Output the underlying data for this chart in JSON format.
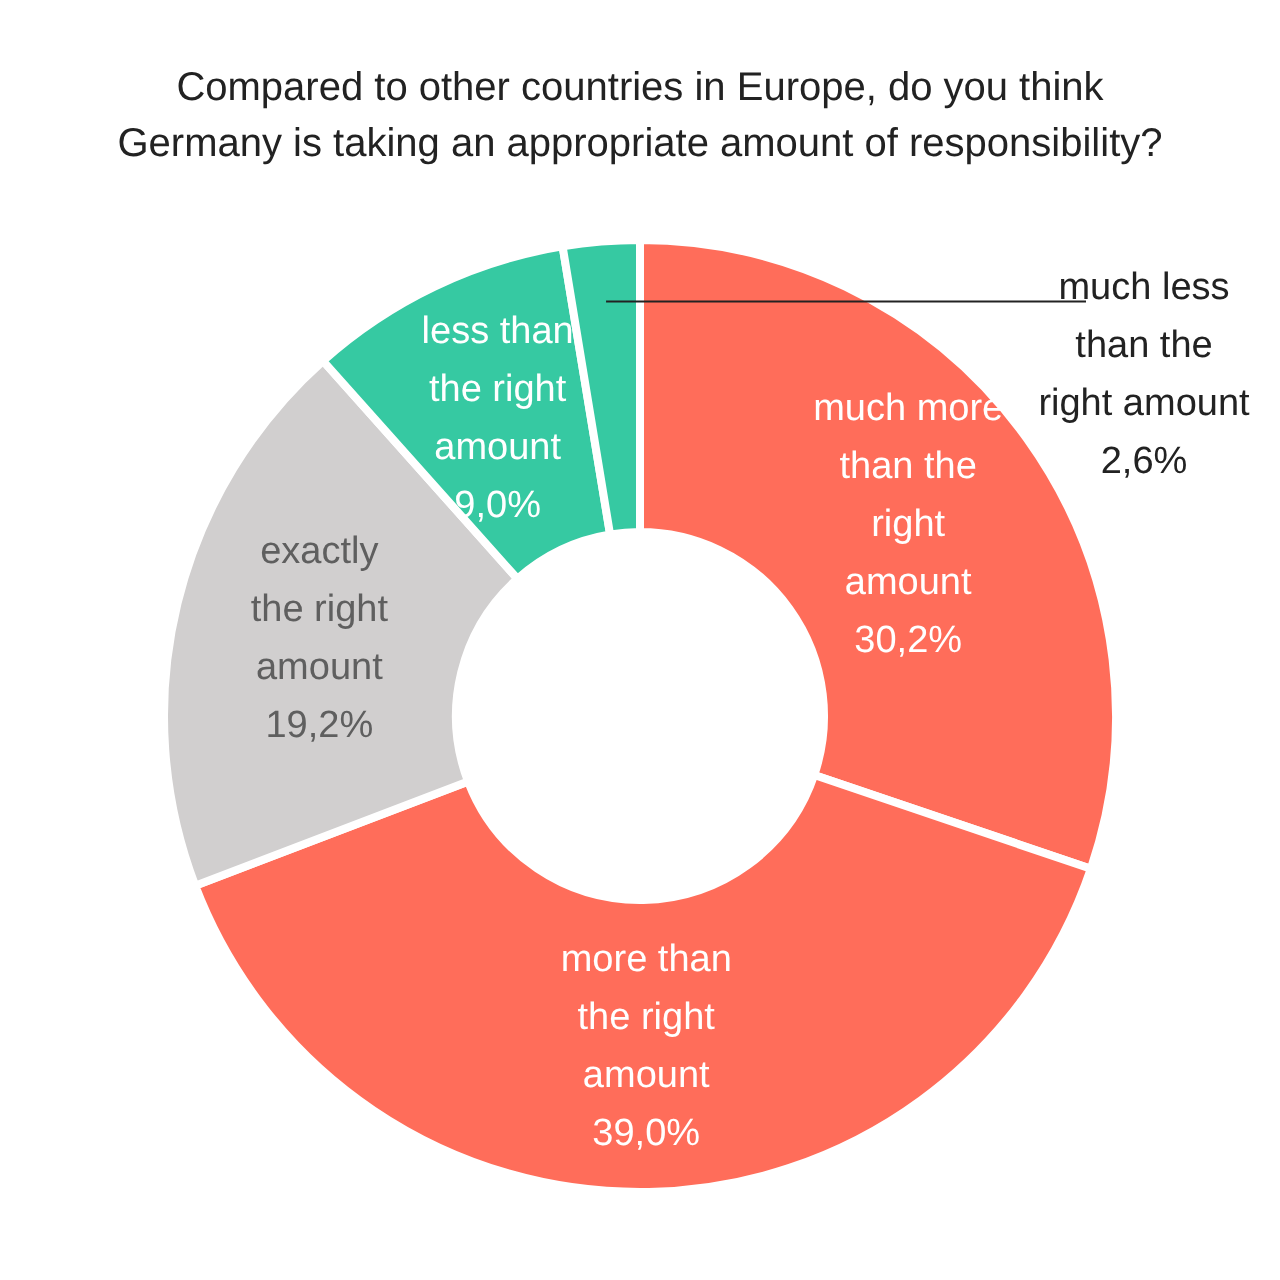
{
  "chart_data": {
    "type": "donut",
    "title": "Compared to other countries in Europe, do you think Germany is taking an appropriate amount of responsibility?",
    "categories": [
      "much more than the right amount",
      "more than the right amount",
      "exactly the right amount",
      "less than the right amount",
      "much less than the right amount"
    ],
    "values": [
      30.2,
      39.0,
      19.2,
      9.0,
      2.6
    ],
    "value_labels": [
      "30,2%",
      "39,0%",
      "19,2%",
      "9,0%",
      "2,6%"
    ],
    "colors": [
      "#ff6d5a",
      "#ff6d5a",
      "#d1cfcf",
      "#36c9a2",
      "#36c9a2"
    ],
    "legend": false
  }
}
